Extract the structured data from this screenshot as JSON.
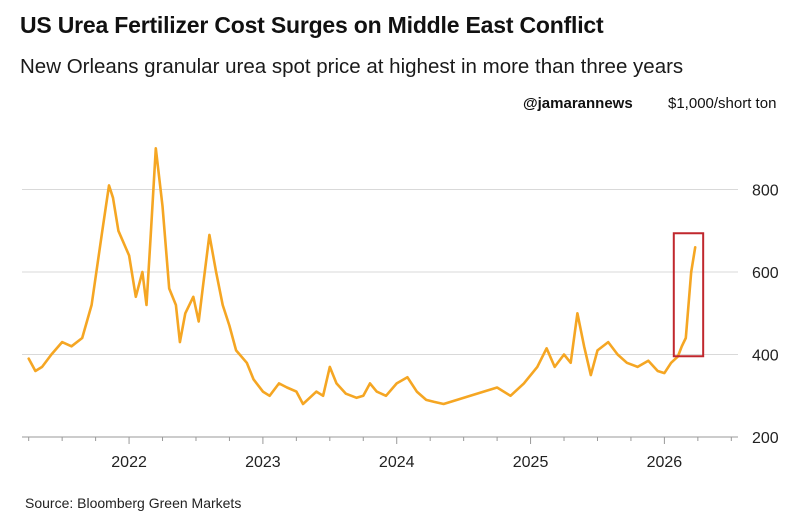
{
  "header": {
    "title": "US Urea Fertilizer Cost Surges on Middle East Conflict",
    "subtitle": "New Orleans granular urea spot price at highest in more than three years",
    "watermark": "@jamarannews",
    "unit": "$1,000/short ton"
  },
  "footer": {
    "source": "Source: Bloomberg Green Markets"
  },
  "colors": {
    "line": "#f5a623",
    "highlight_box": "#c0272d",
    "axis": "#999999",
    "grid": "#d9d9d9"
  },
  "chart_data": {
    "type": "line",
    "title": "US Urea Fertilizer Cost Surges on Middle East Conflict",
    "subtitle": "New Orleans granular urea spot price at highest in more than three years",
    "ylabel": "$1,000/short ton",
    "ylim": [
      200,
      920
    ],
    "xlim": [
      2021.2,
      2026.55
    ],
    "yticks": [
      200,
      400,
      600,
      800
    ],
    "xticks": [
      "2022",
      "2023",
      "2024",
      "2025",
      "2026"
    ],
    "grid": true,
    "annotation": "highlight box around latest values (early 2026)",
    "series": [
      {
        "x": [
          2021.25,
          2021.3,
          2021.35,
          2021.42,
          2021.5,
          2021.57,
          2021.65,
          2021.72,
          2021.8,
          2021.85,
          2021.88,
          2021.92,
          2022.0,
          2022.05,
          2022.1,
          2022.13,
          2022.16,
          2022.2,
          2022.25,
          2022.3,
          2022.35,
          2022.38,
          2022.42,
          2022.48,
          2022.52,
          2022.55,
          2022.6,
          2022.65,
          2022.7,
          2022.75,
          2022.8,
          2022.88,
          2022.93,
          2023.0,
          2023.05,
          2023.12,
          2023.18,
          2023.25,
          2023.3,
          2023.35,
          2023.4,
          2023.45,
          2023.5,
          2023.55,
          2023.62,
          2023.7,
          2023.75,
          2023.8,
          2023.85,
          2023.92,
          2024.0,
          2024.08,
          2024.15,
          2024.22,
          2024.28,
          2024.35,
          2024.45,
          2024.55,
          2024.65,
          2024.75,
          2024.85,
          2024.95,
          2025.05,
          2025.12,
          2025.18,
          2025.25,
          2025.3,
          2025.35,
          2025.4,
          2025.45,
          2025.5,
          2025.58,
          2025.65,
          2025.72,
          2025.8,
          2025.88,
          2025.95,
          2026.0,
          2026.05,
          2026.1,
          2026.13,
          2026.16,
          2026.18,
          2026.2,
          2026.23
        ],
        "values": [
          390,
          360,
          370,
          400,
          430,
          420,
          440,
          520,
          700,
          810,
          780,
          700,
          640,
          540,
          600,
          520,
          680,
          900,
          760,
          560,
          520,
          430,
          500,
          540,
          480,
          560,
          690,
          600,
          520,
          470,
          410,
          380,
          340,
          310,
          300,
          330,
          320,
          310,
          280,
          295,
          310,
          300,
          370,
          330,
          305,
          295,
          300,
          330,
          310,
          300,
          330,
          345,
          310,
          290,
          285,
          280,
          290,
          300,
          310,
          320,
          300,
          330,
          370,
          415,
          370,
          400,
          380,
          500,
          420,
          350,
          410,
          430,
          400,
          380,
          370,
          385,
          360,
          355,
          380,
          395,
          420,
          440,
          520,
          600,
          660
        ]
      }
    ]
  }
}
